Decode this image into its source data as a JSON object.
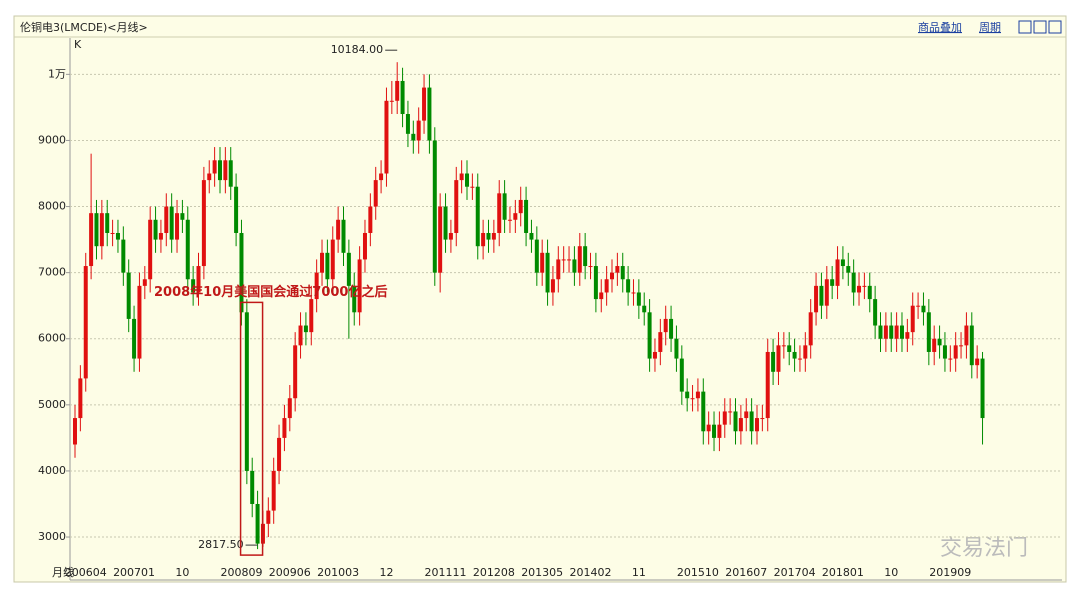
{
  "header": {
    "title": "伦铜电3(LMCDE)<月线>",
    "links": [
      "商品叠加",
      "周期"
    ]
  },
  "chart_data": {
    "type": "candlestick",
    "period_label": "K",
    "axis_label": "月线",
    "up_color": "#e01010",
    "down_color": "#008a00",
    "grid": true,
    "annotations": {
      "high": "10184.00",
      "low": "2817.50",
      "note": "2008年10月美国国会通过7000亿之后"
    },
    "watermark": "交易法门",
    "ylim": [
      2350,
      10550
    ],
    "yticks": [
      3000,
      4000,
      5000,
      6000,
      7000,
      8000,
      9000,
      {
        "value": 10000,
        "label": "1万"
      }
    ],
    "categories": [
      null,
      null,
      "200604",
      null,
      null,
      null,
      null,
      null,
      null,
      null,
      null,
      "200701",
      null,
      null,
      null,
      null,
      null,
      null,
      null,
      null,
      "10",
      null,
      null,
      null,
      null,
      null,
      null,
      null,
      null,
      null,
      null,
      "200809",
      null,
      null,
      null,
      null,
      null,
      null,
      null,
      null,
      "200906",
      null,
      null,
      null,
      null,
      null,
      null,
      null,
      null,
      "201003",
      null,
      null,
      null,
      null,
      null,
      null,
      null,
      null,
      "12",
      null,
      null,
      null,
      null,
      null,
      null,
      null,
      null,
      null,
      null,
      "201111",
      null,
      null,
      null,
      null,
      null,
      null,
      null,
      null,
      "201208",
      null,
      null,
      null,
      null,
      null,
      null,
      null,
      null,
      "201305",
      null,
      null,
      null,
      null,
      null,
      null,
      null,
      null,
      "201402",
      null,
      null,
      null,
      null,
      null,
      null,
      null,
      null,
      "11",
      null,
      null,
      null,
      null,
      null,
      null,
      null,
      null,
      null,
      null,
      "201510",
      null,
      null,
      null,
      null,
      null,
      null,
      null,
      null,
      "201607",
      null,
      null,
      null,
      null,
      null,
      null,
      null,
      null,
      "201704",
      null,
      null,
      null,
      null,
      null,
      null,
      null,
      null,
      "201801",
      null,
      null,
      null,
      null,
      null,
      null,
      null,
      null,
      "10",
      null,
      null,
      null,
      null,
      null,
      null,
      null,
      null,
      null,
      null,
      "201909",
      null,
      null,
      null,
      null,
      null,
      null
    ],
    "open": [
      4400,
      4800,
      5400,
      7100,
      7900,
      7400,
      7900,
      7600,
      7600,
      7500,
      7000,
      6300,
      5700,
      6800,
      6900,
      7800,
      7500,
      7600,
      8000,
      7500,
      7900,
      7800,
      6900,
      6700,
      7100,
      8400,
      8500,
      8700,
      8400,
      8700,
      8300,
      7600,
      6400,
      4000,
      3500,
      2900,
      3200,
      3400,
      4000,
      4500,
      4800,
      5100,
      5900,
      6200,
      6100,
      6600,
      7000,
      7300,
      6900,
      7500,
      7800,
      7300,
      6800,
      6400,
      7200,
      7600,
      8000,
      8400,
      8500,
      9600,
      9600,
      9900,
      9400,
      9100,
      9000,
      9300,
      9800,
      9000,
      7000,
      8000,
      7500,
      7600,
      8400,
      8500,
      8300,
      8300,
      7400,
      7600,
      7500,
      7600,
      8200,
      7800,
      7800,
      7900,
      8100,
      7600,
      7500,
      7000,
      7300,
      6700,
      6900,
      7200,
      7200,
      7200,
      7000,
      7400,
      7100,
      7100,
      6600,
      6700,
      6900,
      7000,
      7100,
      6900,
      6700,
      6700,
      6500,
      6400,
      5700,
      5800,
      6100,
      6300,
      6000,
      5700,
      5200,
      5100,
      5100,
      5200,
      4600,
      4700,
      4500,
      4700,
      4900,
      4900,
      4600,
      4800,
      4900,
      4600,
      4800,
      4800,
      5800,
      5500,
      5900,
      5900,
      5800,
      5700,
      5700,
      5900,
      6400,
      6800,
      6500,
      6900,
      6800,
      7200,
      7100,
      7000,
      6700,
      6800,
      6800,
      6600,
      6200,
      6000,
      6200,
      6000,
      6200,
      6000,
      6100,
      6500,
      6500,
      6400,
      5800,
      6000,
      5900,
      5700,
      5700,
      5900,
      5900,
      6200,
      5600,
      5700
    ],
    "high": [
      5000,
      5600,
      7300,
      8800,
      8100,
      8100,
      8100,
      7800,
      7800,
      7700,
      7200,
      6500,
      7000,
      7100,
      8000,
      8000,
      7800,
      8200,
      8200,
      8100,
      8100,
      8000,
      7100,
      7300,
      8600,
      8700,
      8900,
      8900,
      8900,
      8900,
      8500,
      7800,
      6600,
      4200,
      3700,
      3400,
      3600,
      4200,
      4700,
      5000,
      5300,
      6100,
      6400,
      6400,
      6800,
      7200,
      7500,
      7500,
      7700,
      8000,
      8000,
      7500,
      7000,
      7400,
      7800,
      8200,
      8600,
      8700,
      9800,
      9900,
      10184,
      10100,
      9600,
      9300,
      9500,
      10000,
      10000,
      9200,
      8200,
      8200,
      7800,
      8600,
      8700,
      8700,
      8500,
      8500,
      7800,
      7800,
      7800,
      8400,
      8400,
      8000,
      8100,
      8300,
      8300,
      7800,
      7700,
      7500,
      7500,
      7100,
      7400,
      7400,
      7400,
      7400,
      7600,
      7600,
      7300,
      7300,
      6900,
      7100,
      7200,
      7300,
      7300,
      7100,
      6900,
      6900,
      6700,
      6600,
      6000,
      6300,
      6500,
      6500,
      6200,
      5900,
      5400,
      5300,
      5400,
      5400,
      4900,
      4900,
      4900,
      5100,
      5100,
      5100,
      5000,
      5100,
      5100,
      5000,
      5000,
      6000,
      6000,
      6100,
      6100,
      6100,
      6000,
      5900,
      6100,
      6600,
      7000,
      7000,
      7100,
      7100,
      7400,
      7400,
      7300,
      7200,
      7000,
      7000,
      7000,
      6800,
      6400,
      6400,
      6400,
      6400,
      6400,
      6300,
      6700,
      6700,
      6700,
      6600,
      6200,
      6200,
      6100,
      5900,
      6100,
      6100,
      6400,
      6400,
      5900,
      5800
    ],
    "low": [
      4200,
      4600,
      5200,
      6900,
      7200,
      7200,
      7400,
      7400,
      7300,
      6800,
      6100,
      5500,
      5500,
      6600,
      6700,
      7300,
      7300,
      7400,
      7300,
      7300,
      7600,
      6700,
      6500,
      6500,
      6900,
      8200,
      8300,
      8200,
      8200,
      8100,
      7400,
      6200,
      3800,
      3300,
      2817.5,
      2850,
      3000,
      3200,
      3800,
      4300,
      4600,
      4900,
      5700,
      5900,
      5900,
      6400,
      6800,
      6700,
      6700,
      7300,
      7100,
      6000,
      6200,
      6200,
      7000,
      7400,
      7800,
      8200,
      8300,
      9400,
      9400,
      9200,
      8900,
      8800,
      8800,
      9100,
      8800,
      6800,
      6700,
      7300,
      7300,
      7400,
      8200,
      8100,
      8100,
      7200,
      7200,
      7300,
      7300,
      7400,
      7600,
      7600,
      7600,
      7700,
      7400,
      7300,
      6800,
      6800,
      6500,
      6500,
      6700,
      7000,
      7000,
      6800,
      6800,
      6900,
      6900,
      6400,
      6400,
      6500,
      6700,
      6800,
      6700,
      6500,
      6500,
      6300,
      6200,
      5500,
      5500,
      5600,
      5900,
      5800,
      5500,
      5000,
      4900,
      4900,
      4900,
      4400,
      4400,
      4300,
      4300,
      4500,
      4700,
      4400,
      4400,
      4600,
      4400,
      4400,
      4600,
      4600,
      5300,
      5300,
      5700,
      5600,
      5500,
      5500,
      5500,
      5700,
      6200,
      6300,
      6300,
      6600,
      6600,
      6900,
      6800,
      6500,
      6500,
      6600,
      6400,
      6000,
      5800,
      5800,
      5800,
      5800,
      5800,
      5800,
      5900,
      6300,
      6200,
      5600,
      5600,
      5700,
      5500,
      5500,
      5500,
      5700,
      5700,
      5400,
      5400,
      4400
    ],
    "close": [
      4800,
      5400,
      7100,
      7900,
      7400,
      7900,
      7600,
      7600,
      7500,
      7000,
      6300,
      5700,
      6800,
      6900,
      7800,
      7500,
      7600,
      8000,
      7500,
      7900,
      7800,
      6900,
      6700,
      7100,
      8400,
      8500,
      8700,
      8400,
      8700,
      8300,
      7600,
      6400,
      4000,
      3500,
      2900,
      3200,
      3400,
      4000,
      4500,
      4800,
      5100,
      5900,
      6200,
      6100,
      6600,
      7000,
      7300,
      6900,
      7500,
      7800,
      7300,
      6800,
      6400,
      7200,
      7600,
      8000,
      8400,
      8500,
      9600,
      9600,
      9900,
      9400,
      9100,
      9000,
      9300,
      9800,
      9000,
      7000,
      8000,
      7500,
      7600,
      8400,
      8500,
      8300,
      8300,
      7400,
      7600,
      7500,
      7600,
      8200,
      7800,
      7800,
      7900,
      8100,
      7600,
      7500,
      7000,
      7300,
      6700,
      6900,
      7200,
      7200,
      7200,
      7000,
      7400,
      7100,
      7100,
      6600,
      6700,
      6900,
      7000,
      7100,
      6900,
      6700,
      6700,
      6500,
      6400,
      5700,
      5800,
      6100,
      6300,
      6000,
      5700,
      5200,
      5100,
      5100,
      5200,
      4600,
      4700,
      4500,
      4700,
      4900,
      4900,
      4600,
      4800,
      4900,
      4600,
      4800,
      4800,
      5800,
      5500,
      5900,
      5900,
      5800,
      5700,
      5700,
      5900,
      6400,
      6800,
      6500,
      6900,
      6800,
      7200,
      7100,
      7000,
      6700,
      6800,
      6800,
      6600,
      6200,
      6000,
      6200,
      6000,
      6200,
      6000,
      6100,
      6500,
      6500,
      6400,
      5800,
      6000,
      5900,
      5700,
      5700,
      5900,
      5900,
      6200,
      5600,
      5700,
      4800
    ]
  }
}
